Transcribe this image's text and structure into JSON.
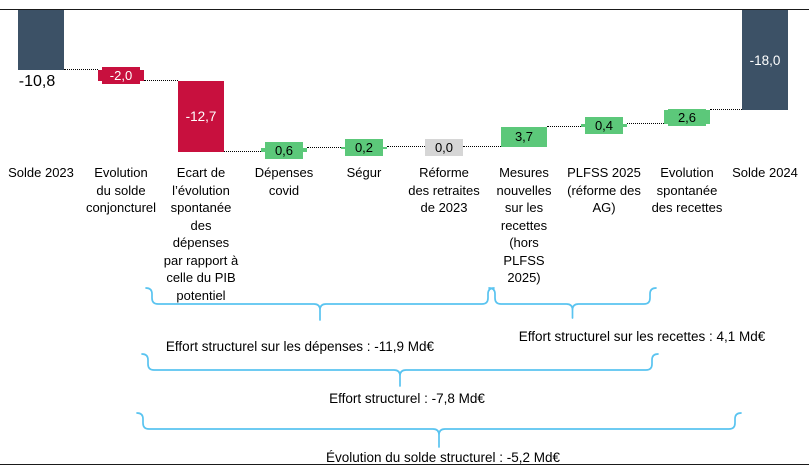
{
  "chart_data": {
    "type": "bar",
    "subtype": "waterfall",
    "title": "",
    "unit": "Md€",
    "categories": [
      "Solde 2023",
      "Evolution\ndu solde\nconjoncturel",
      "Ecart de\nl’évolution\nspontanée\ndes\ndépenses\npar rapport à\ncelle du PIB\npotentiel",
      "Dépenses\ncovid",
      "Ségur",
      "Réforme\ndes retraites\nde 2023",
      "Mesures\nnouvelles\nsur les\nrecettes\n(hors\nPLFSS\n2025)",
      "PLFSS 2025\n(réforme des\nAG)",
      "Evolution\nspontanée\ndes recettes",
      "Solde 2024"
    ],
    "values": [
      -10.8,
      -2.0,
      -12.7,
      0.6,
      0.2,
      0.0,
      3.7,
      0.4,
      2.6,
      -18.0
    ],
    "display_values": [
      "-10,8",
      "-2,0",
      "-12,7",
      "0,6",
      "0,2",
      "0,0",
      "3,7",
      "0,4",
      "2,6",
      "-18,0"
    ],
    "bar_kinds": [
      "total",
      "delta",
      "delta",
      "delta",
      "delta",
      "delta",
      "delta",
      "delta",
      "delta",
      "total"
    ],
    "bar_colors": [
      "navy",
      "red",
      "red",
      "green",
      "green",
      "gray",
      "green",
      "green",
      "green",
      "navy"
    ],
    "label_styles": [
      "below-black",
      "chip-white",
      "inside-white",
      "chip-black",
      "chip-black",
      "chip-black",
      "chip-black",
      "chip-black",
      "chip-black",
      "inside-white"
    ],
    "palette": {
      "navy": "#3C5166",
      "red": "#C8103E",
      "green": "#5CC87A",
      "gray": "#D6D6D6",
      "brace": "#5AC4F0",
      "text": "#000000",
      "axis": "#1a1a1a"
    },
    "ylim": [
      -25.5,
      0
    ],
    "grid": false,
    "legend": "none",
    "annotations": [
      {
        "id": "effort-depenses",
        "label": "Effort structurel sur les dépenses : -11,9 Md€"
      },
      {
        "id": "effort-recettes",
        "label": "Effort structurel sur les recettes : 4,1 Md€"
      },
      {
        "id": "effort-structurel",
        "label": "Effort structurel : -7,8 Md€"
      },
      {
        "id": "evolution-solde-structurel",
        "label": "Évolution du solde structurel : -5,2 Md€"
      }
    ]
  }
}
